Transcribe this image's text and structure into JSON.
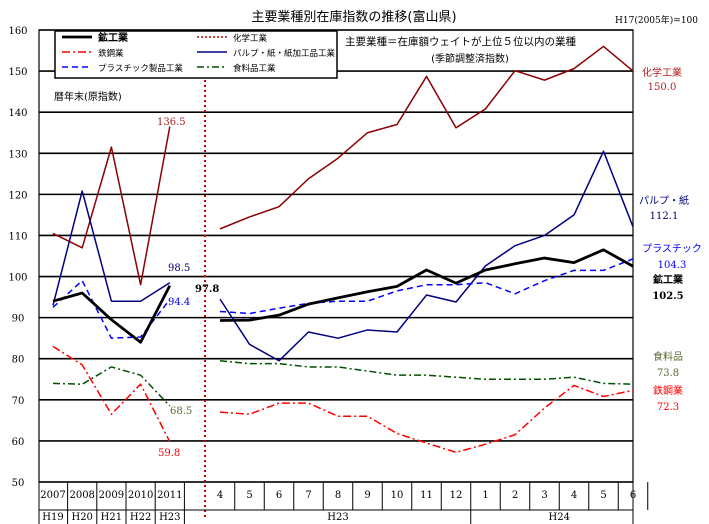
{
  "chart_data": {
    "type": "line",
    "title": "主要業種別在庫指数の推移(富山県)",
    "base_note": "H17(2005年)=100",
    "note_main": "主要業種＝在庫額ウェイトが上位５位以内の業種",
    "note_sub": "(季節調整済指数)",
    "annual_label": "暦年末(原指数)",
    "ylim": [
      50,
      160
    ],
    "y_ticks": [
      50,
      60,
      70,
      80,
      90,
      100,
      110,
      120,
      130,
      140,
      150,
      160
    ],
    "annual_categories": [
      "2007",
      "2008",
      "2009",
      "2010",
      "2011"
    ],
    "annual_era": [
      "H19",
      "H20",
      "H21",
      "H22",
      "H23"
    ],
    "monthly_categories": [
      "4",
      "5",
      "6",
      "7",
      "8",
      "9",
      "10",
      "11",
      "12",
      "1",
      "2",
      "3",
      "4",
      "5",
      "6"
    ],
    "monthly_era": [
      "H23",
      "H24"
    ],
    "legend": [
      "鉱工業",
      "化学工業",
      "鉄鋼業",
      "パルプ・紙・紙加工品工業",
      "プラスチック製品工業",
      "食料品工業"
    ],
    "series": [
      {
        "name": "鉱工業",
        "color": "#000000",
        "annual": [
          94.0,
          96.0,
          89.5,
          84.0,
          97.8
        ],
        "monthly": [
          89.3,
          89.4,
          90.6,
          93.3,
          94.8,
          96.3,
          97.6,
          101.6,
          98.4,
          101.6,
          103.1,
          104.5,
          103.4,
          106.5,
          102.5
        ]
      },
      {
        "name": "化学工業",
        "color": "#8b0000",
        "annual": [
          110.5,
          107.0,
          131.5,
          98.0,
          136.5
        ],
        "monthly": [
          111.6,
          114.5,
          117.0,
          123.8,
          128.8,
          135.0,
          137.0,
          148.7,
          136.2,
          140.8,
          150.1,
          147.8,
          150.6,
          156.0,
          150.0
        ]
      },
      {
        "name": "鉄鋼業",
        "color": "#ff0000",
        "annual": [
          83.0,
          78.5,
          66.5,
          73.8,
          59.8
        ],
        "monthly": [
          67.0,
          66.5,
          69.2,
          69.2,
          66.0,
          66.0,
          61.8,
          59.5,
          57.2,
          59.2,
          61.5,
          68.0,
          73.5,
          70.8,
          72.3
        ]
      },
      {
        "name": "パルプ・紙・紙加工品工業",
        "color": "#000080",
        "annual": [
          93.0,
          120.8,
          94.0,
          94.0,
          98.5
        ],
        "monthly": [
          94.5,
          83.5,
          79.5,
          86.5,
          85.0,
          87.0,
          86.5,
          95.5,
          93.8,
          102.6,
          107.5,
          110.0,
          115.0,
          130.5,
          112.1
        ]
      },
      {
        "name": "プラスチック製品工業",
        "color": "#0000ff",
        "annual": [
          92.5,
          99.0,
          85.0,
          85.3,
          94.4
        ],
        "monthly": [
          91.5,
          91.0,
          92.3,
          93.5,
          94.0,
          94.0,
          96.5,
          98.0,
          98.0,
          98.5,
          95.8,
          99.0,
          101.5,
          101.5,
          104.3
        ]
      },
      {
        "name": "食料品工業",
        "color": "#005000",
        "annual": [
          74.0,
          73.8,
          78.0,
          76.0,
          68.5
        ],
        "monthly": [
          79.5,
          78.8,
          78.8,
          78.0,
          78.0,
          77.0,
          76.0,
          76.0,
          75.5,
          75.0,
          75.0,
          75.0,
          75.5,
          74.0,
          73.8
        ]
      }
    ],
    "annual_end_labels": [
      {
        "series": "化学工業",
        "text": "136.5",
        "color": "#b22222"
      },
      {
        "series": "パルプ・紙・紙加工品工業",
        "text": "98.5",
        "color": "#000080"
      },
      {
        "series": "鉱工業",
        "text": "97.8",
        "color": "#000000",
        "bold": true
      },
      {
        "series": "プラスチック製品工業",
        "text": "94.4",
        "color": "#0000ff"
      },
      {
        "series": "食料品工業",
        "text": "68.5",
        "color": "#556b2f"
      },
      {
        "series": "鉄鋼業",
        "text": "59.8",
        "color": "#ff0000"
      }
    ],
    "right_labels": [
      {
        "name": "化学工業",
        "value": "150.0",
        "color": "#b22222"
      },
      {
        "name": "パルプ・紙",
        "value": "112.1",
        "color": "#000080"
      },
      {
        "name": "プラスチック",
        "value": "104.3",
        "color": "#0000ff"
      },
      {
        "name": "鉱工業",
        "value": "102.5",
        "color": "#000000",
        "bold": true
      },
      {
        "name": "食料品",
        "value": "73.8",
        "color": "#556b2f"
      },
      {
        "name": "鉄鋼業",
        "value": "72.3",
        "color": "#ff0000"
      }
    ]
  }
}
